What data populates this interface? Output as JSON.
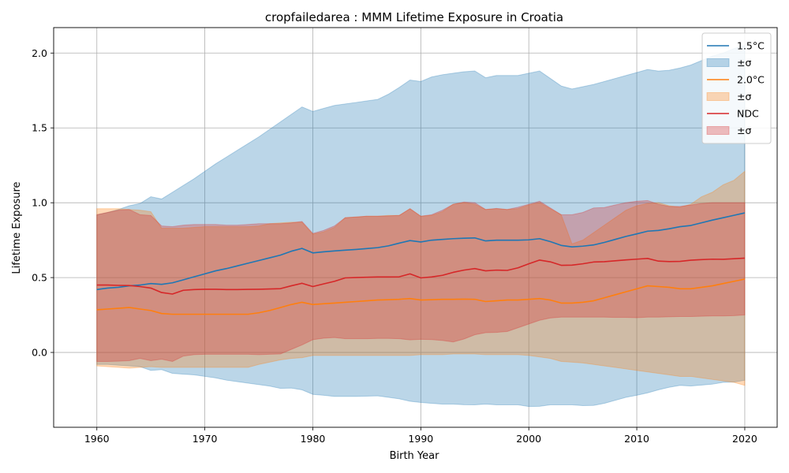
{
  "chart_data": {
    "type": "line",
    "title": "cropfailedarea : MMM Lifetime Exposure in Croatia",
    "xlabel": "Birth Year",
    "ylabel": "Lifetime Exposure",
    "xlim": [
      1956,
      2023
    ],
    "ylim": [
      -0.5,
      2.17
    ],
    "xticks": [
      1960,
      1970,
      1980,
      1990,
      2000,
      2010,
      2020
    ],
    "xtick_labels": [
      "1960",
      "1970",
      "1980",
      "1990",
      "2000",
      "2010",
      "2020"
    ],
    "yticks": [
      0.0,
      0.5,
      1.0,
      1.5,
      2.0
    ],
    "ytick_labels": [
      "0.0",
      "0.5",
      "1.0",
      "1.5",
      "2.0"
    ],
    "grid": true,
    "legend_position": "top-right",
    "legend": [
      {
        "label": "1.5°C",
        "kind": "line",
        "color": "#1f77b4"
      },
      {
        "label": "±σ",
        "kind": "band",
        "color": "#1f77b4"
      },
      {
        "label": "2.0°C",
        "kind": "line",
        "color": "#ff7f0e"
      },
      {
        "label": "±σ",
        "kind": "band",
        "color": "#ff7f0e"
      },
      {
        "label": "NDC",
        "kind": "line",
        "color": "#d62728"
      },
      {
        "label": "±σ",
        "kind": "band",
        "color": "#d62728"
      }
    ],
    "x": [
      1960,
      1961,
      1962,
      1963,
      1964,
      1965,
      1966,
      1967,
      1968,
      1969,
      1970,
      1971,
      1972,
      1973,
      1974,
      1975,
      1976,
      1977,
      1978,
      1979,
      1980,
      1981,
      1982,
      1983,
      1984,
      1985,
      1986,
      1987,
      1988,
      1989,
      1990,
      1991,
      1992,
      1993,
      1994,
      1995,
      1996,
      1997,
      1998,
      1999,
      2000,
      2001,
      2002,
      2003,
      2004,
      2005,
      2006,
      2007,
      2008,
      2009,
      2010,
      2011,
      2012,
      2013,
      2014,
      2015,
      2016,
      2017,
      2018,
      2019,
      2020
    ],
    "series": [
      {
        "name": "1.5°C",
        "color": "#1f77b4",
        "band_alpha": 0.3,
        "mean": [
          0.42,
          0.43,
          0.435,
          0.445,
          0.45,
          0.46,
          0.455,
          0.465,
          0.485,
          0.505,
          0.525,
          0.545,
          0.56,
          0.578,
          0.596,
          0.614,
          0.632,
          0.65,
          0.676,
          0.695,
          0.665,
          0.672,
          0.678,
          0.683,
          0.688,
          0.694,
          0.7,
          0.712,
          0.73,
          0.747,
          0.738,
          0.75,
          0.755,
          0.76,
          0.763,
          0.765,
          0.745,
          0.75,
          0.75,
          0.75,
          0.752,
          0.76,
          0.74,
          0.715,
          0.705,
          0.71,
          0.718,
          0.735,
          0.755,
          0.775,
          0.792,
          0.81,
          0.815,
          0.826,
          0.84,
          0.848,
          0.866,
          0.884,
          0.9,
          0.916,
          0.932
        ],
        "upper": [
          0.92,
          0.935,
          0.955,
          0.98,
          0.995,
          1.04,
          1.025,
          1.07,
          1.115,
          1.16,
          1.21,
          1.26,
          1.305,
          1.35,
          1.395,
          1.44,
          1.49,
          1.54,
          1.59,
          1.64,
          1.61,
          1.63,
          1.65,
          1.66,
          1.67,
          1.68,
          1.69,
          1.725,
          1.77,
          1.82,
          1.81,
          1.84,
          1.855,
          1.865,
          1.875,
          1.88,
          1.835,
          1.85,
          1.85,
          1.85,
          1.865,
          1.88,
          1.83,
          1.78,
          1.76,
          1.775,
          1.79,
          1.81,
          1.83,
          1.85,
          1.87,
          1.89,
          1.88,
          1.885,
          1.9,
          1.92,
          1.95,
          1.98,
          2.0,
          2.03,
          2.05
        ],
        "lower": [
          -0.08,
          -0.08,
          -0.085,
          -0.09,
          -0.095,
          -0.12,
          -0.115,
          -0.14,
          -0.145,
          -0.15,
          -0.16,
          -0.17,
          -0.185,
          -0.195,
          -0.205,
          -0.215,
          -0.225,
          -0.24,
          -0.238,
          -0.25,
          -0.28,
          -0.286,
          -0.294,
          -0.294,
          -0.294,
          -0.292,
          -0.29,
          -0.3,
          -0.31,
          -0.326,
          -0.334,
          -0.34,
          -0.345,
          -0.345,
          -0.349,
          -0.35,
          -0.345,
          -0.35,
          -0.35,
          -0.35,
          -0.361,
          -0.36,
          -0.35,
          -0.35,
          -0.35,
          -0.355,
          -0.354,
          -0.34,
          -0.32,
          -0.3,
          -0.286,
          -0.27,
          -0.25,
          -0.233,
          -0.22,
          -0.224,
          -0.218,
          -0.212,
          -0.2,
          -0.198,
          -0.186
        ]
      },
      {
        "name": "2.0°C",
        "color": "#ff7f0e",
        "band_alpha": 0.3,
        "mean": [
          0.285,
          0.29,
          0.295,
          0.3,
          0.29,
          0.28,
          0.26,
          0.255,
          0.255,
          0.255,
          0.255,
          0.255,
          0.255,
          0.255,
          0.255,
          0.265,
          0.28,
          0.3,
          0.32,
          0.335,
          0.32,
          0.325,
          0.33,
          0.335,
          0.34,
          0.345,
          0.35,
          0.352,
          0.355,
          0.36,
          0.35,
          0.352,
          0.355,
          0.355,
          0.356,
          0.355,
          0.34,
          0.345,
          0.35,
          0.35,
          0.355,
          0.36,
          0.35,
          0.33,
          0.33,
          0.335,
          0.345,
          0.365,
          0.385,
          0.405,
          0.425,
          0.445,
          0.44,
          0.435,
          0.425,
          0.425,
          0.435,
          0.445,
          0.46,
          0.475,
          0.49
        ],
        "upper": [
          0.96,
          0.96,
          0.96,
          0.955,
          0.95,
          0.94,
          0.83,
          0.83,
          0.83,
          0.835,
          0.84,
          0.84,
          0.84,
          0.84,
          0.84,
          0.845,
          0.86,
          0.865,
          0.87,
          0.87,
          0.79,
          0.805,
          0.835,
          0.9,
          0.905,
          0.91,
          0.91,
          0.915,
          0.915,
          0.96,
          0.91,
          0.915,
          0.94,
          0.99,
          1.0,
          0.99,
          0.955,
          0.96,
          0.955,
          0.96,
          0.985,
          1.0,
          0.96,
          0.92,
          0.725,
          0.75,
          0.8,
          0.85,
          0.9,
          0.95,
          0.98,
          0.995,
          1.0,
          0.98,
          0.97,
          0.99,
          1.04,
          1.07,
          1.12,
          1.15,
          1.21
        ],
        "lower": [
          -0.09,
          -0.095,
          -0.1,
          -0.105,
          -0.1,
          -0.095,
          -0.1,
          -0.1,
          -0.1,
          -0.1,
          -0.1,
          -0.1,
          -0.1,
          -0.1,
          -0.1,
          -0.08,
          -0.065,
          -0.05,
          -0.04,
          -0.035,
          -0.02,
          -0.02,
          -0.02,
          -0.02,
          -0.02,
          -0.02,
          -0.02,
          -0.02,
          -0.02,
          -0.02,
          -0.015,
          -0.015,
          -0.015,
          -0.01,
          -0.01,
          -0.01,
          -0.015,
          -0.015,
          -0.015,
          -0.015,
          -0.02,
          -0.03,
          -0.04,
          -0.06,
          -0.065,
          -0.07,
          -0.08,
          -0.09,
          -0.1,
          -0.11,
          -0.12,
          -0.13,
          -0.14,
          -0.15,
          -0.16,
          -0.16,
          -0.17,
          -0.18,
          -0.19,
          -0.2,
          -0.22
        ]
      },
      {
        "name": "NDC",
        "color": "#d62728",
        "band_alpha": 0.3,
        "mean": [
          0.45,
          0.45,
          0.448,
          0.447,
          0.44,
          0.43,
          0.4,
          0.39,
          0.415,
          0.42,
          0.422,
          0.422,
          0.42,
          0.42,
          0.421,
          0.422,
          0.424,
          0.426,
          0.445,
          0.462,
          0.44,
          0.458,
          0.475,
          0.498,
          0.5,
          0.502,
          0.504,
          0.504,
          0.505,
          0.525,
          0.498,
          0.504,
          0.515,
          0.535,
          0.55,
          0.56,
          0.545,
          0.55,
          0.548,
          0.565,
          0.592,
          0.617,
          0.605,
          0.582,
          0.583,
          0.592,
          0.604,
          0.606,
          0.612,
          0.618,
          0.623,
          0.628,
          0.61,
          0.607,
          0.608,
          0.616,
          0.62,
          0.623,
          0.622,
          0.626,
          0.63
        ],
        "upper": [
          0.92,
          0.935,
          0.95,
          0.955,
          0.92,
          0.915,
          0.845,
          0.84,
          0.85,
          0.855,
          0.855,
          0.855,
          0.85,
          0.85,
          0.855,
          0.86,
          0.86,
          0.86,
          0.865,
          0.875,
          0.795,
          0.815,
          0.845,
          0.9,
          0.905,
          0.91,
          0.91,
          0.912,
          0.915,
          0.96,
          0.91,
          0.92,
          0.95,
          0.99,
          1.005,
          1.0,
          0.955,
          0.962,
          0.955,
          0.97,
          0.99,
          1.01,
          0.965,
          0.92,
          0.92,
          0.935,
          0.965,
          0.968,
          0.985,
          1.0,
          1.01,
          1.015,
          0.99,
          0.975,
          0.975,
          0.985,
          0.995,
          1.0,
          1.0,
          1.0,
          1.0
        ],
        "lower": [
          -0.06,
          -0.06,
          -0.058,
          -0.055,
          -0.04,
          -0.055,
          -0.045,
          -0.06,
          -0.025,
          -0.015,
          -0.012,
          -0.012,
          -0.012,
          -0.012,
          -0.012,
          -0.015,
          -0.012,
          -0.01,
          0.02,
          0.05,
          0.085,
          0.095,
          0.1,
          0.092,
          0.092,
          0.092,
          0.094,
          0.094,
          0.092,
          0.084,
          0.088,
          0.086,
          0.08,
          0.07,
          0.09,
          0.118,
          0.132,
          0.134,
          0.14,
          0.165,
          0.19,
          0.215,
          0.23,
          0.236,
          0.236,
          0.236,
          0.236,
          0.236,
          0.234,
          0.234,
          0.232,
          0.236,
          0.236,
          0.238,
          0.24,
          0.24,
          0.242,
          0.244,
          0.244,
          0.246,
          0.25
        ]
      }
    ]
  }
}
